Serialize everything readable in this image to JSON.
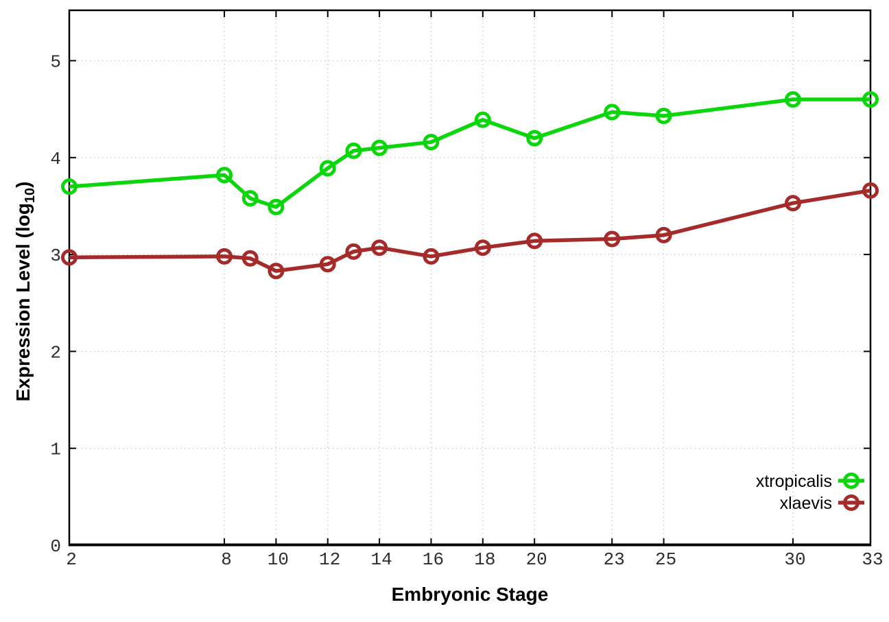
{
  "figure": {
    "background": "#ffffff",
    "axis_color": "#000000",
    "grid_color": "#c6c6c6",
    "tick_label_color": "#2e2e2e"
  },
  "chart_data": {
    "type": "line",
    "title": "",
    "xlabel": "Embryonic Stage",
    "ylabel": "Expression Level (log10)",
    "ylabel_parts": {
      "main": "Expression Level (log",
      "sub": "10",
      "suffix": ")"
    },
    "xlim": [
      2,
      33
    ],
    "ylim": [
      0,
      5.52
    ],
    "x_ticks": [
      2,
      8,
      10,
      12,
      14,
      16,
      18,
      20,
      23,
      25,
      30,
      33
    ],
    "x_tick_labels": [
      "2",
      "8",
      "10",
      "12",
      "14",
      "16",
      "18",
      "20",
      "23",
      "25",
      "30",
      "33"
    ],
    "y_ticks": [
      0,
      1,
      2,
      3,
      4,
      5
    ],
    "y_tick_labels": [
      "0",
      "1",
      "2",
      "3",
      "4",
      "5"
    ],
    "grid": "dotted, both axes",
    "legend_position": "inside bottom-right",
    "x": [
      2,
      8,
      9,
      10,
      12,
      13,
      14,
      16,
      18,
      20,
      23,
      25,
      30,
      33
    ],
    "series": [
      {
        "name": "xtropicalis",
        "color": "#0bd60b",
        "marker": "open-circle",
        "values": [
          3.7,
          3.82,
          3.58,
          3.49,
          3.89,
          4.07,
          4.1,
          4.16,
          4.39,
          4.2,
          4.47,
          4.43,
          4.6,
          4.6
        ]
      },
      {
        "name": "xlaevis",
        "color": "#a52a2a",
        "marker": "open-circle",
        "values": [
          2.97,
          2.98,
          2.96,
          2.83,
          2.9,
          3.03,
          3.07,
          2.98,
          3.07,
          3.14,
          3.16,
          3.2,
          3.53,
          3.66
        ]
      }
    ]
  }
}
